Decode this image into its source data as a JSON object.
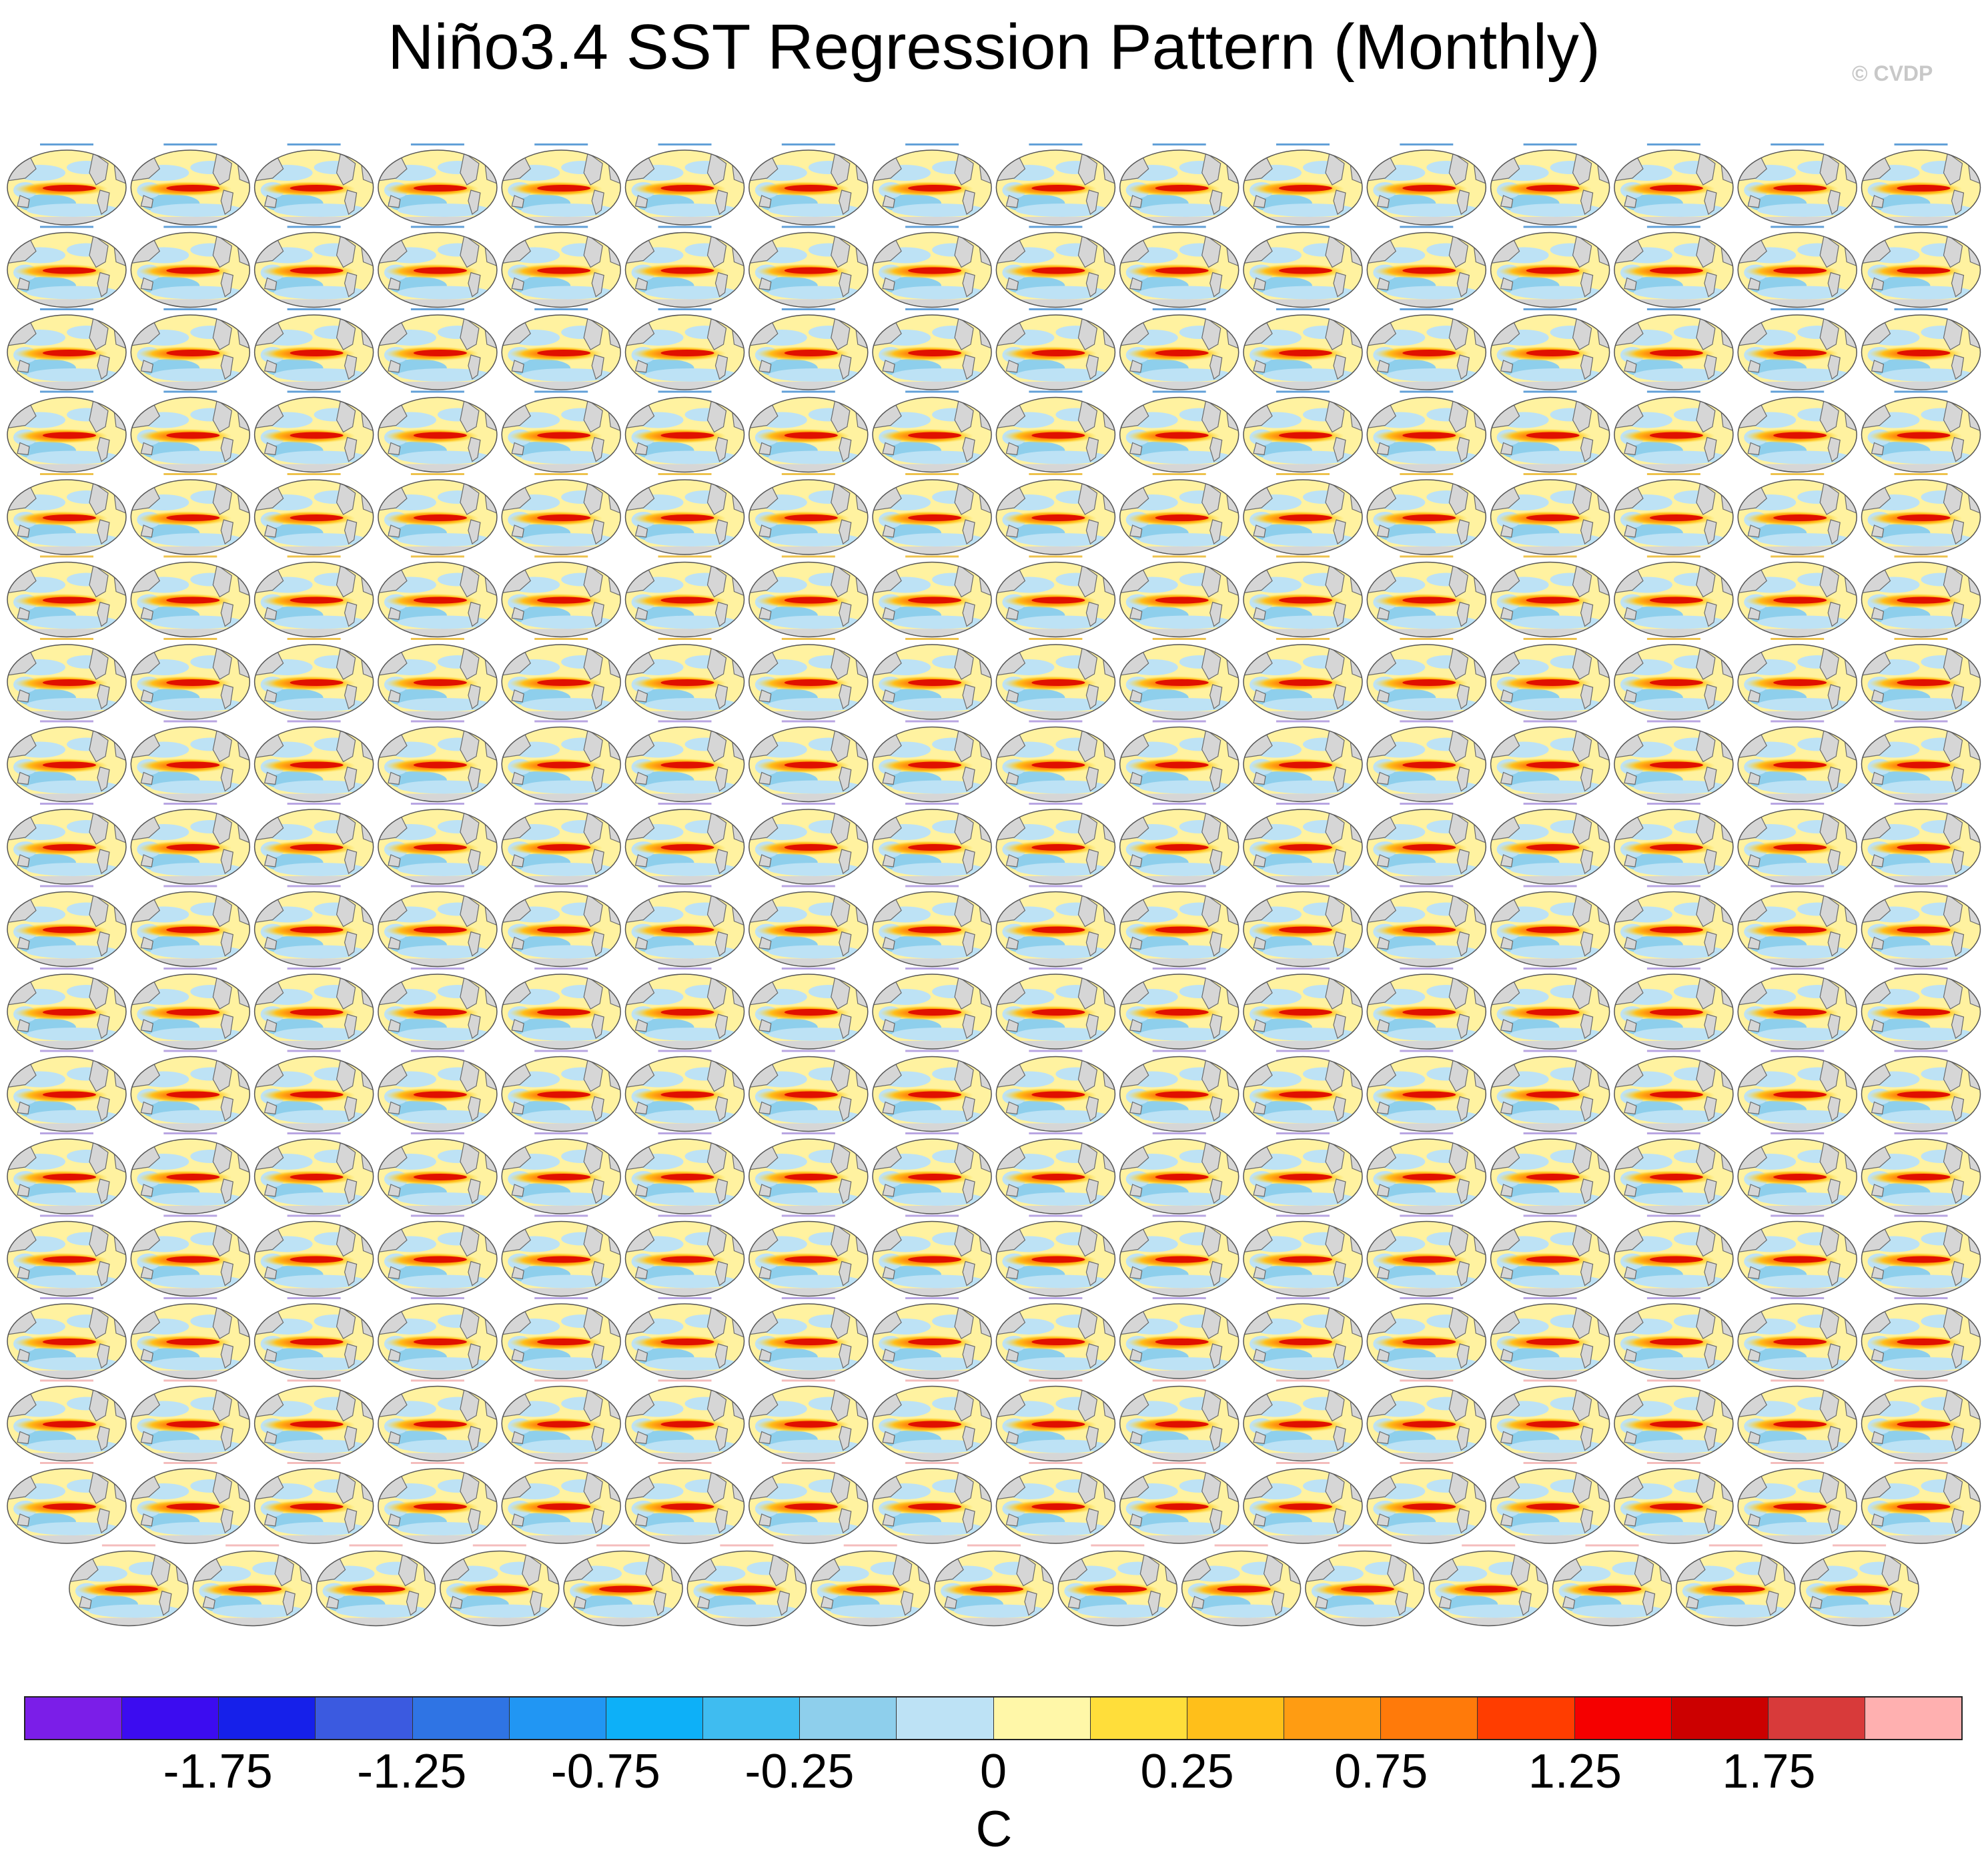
{
  "title": "Niño3.4 SST Regression Pattern (Monthly)",
  "watermark": "© CVDP",
  "chart_data": {
    "type": "heatmap",
    "title": "Niño3.4 SST Regression Pattern (Monthly)",
    "panel_grid": {
      "rows_full": 17,
      "columns_full": 16,
      "last_row_panels": 15
    },
    "panel_map": "Robinson/elliptical global map with gray continents; Niño3.4 regression pattern with positive tongue along the equatorial Pacific",
    "colorbar": {
      "unit": "C",
      "tick_labels": [
        "-1.75",
        "-1.25",
        "-0.75",
        "-0.25",
        "0",
        "0.25",
        "0.75",
        "1.25",
        "1.75"
      ],
      "colors": [
        "#7b1ee8",
        "#3c0cf0",
        "#1620ea",
        "#3b5ae0",
        "#2f74e4",
        "#2196f3",
        "#0db0f8",
        "#3fbcf0",
        "#8ecfec",
        "#bde2f5",
        "#fff7a8",
        "#ffde3a",
        "#ffbf1a",
        "#ff9c12",
        "#ff7a0a",
        "#ff3d00",
        "#f50000",
        "#cc0000",
        "#d83a3a",
        "#ffb0b0"
      ]
    },
    "legend_placement": "bottom"
  },
  "palette": {
    "land": "#d6d6d6",
    "coast": "#6a6a6a",
    "pacific_label_blue": "#1f78c8",
    "orange_label": "#e6a800",
    "purple_label": "#9a7fd6",
    "pink_label": "#f0a0a0"
  }
}
